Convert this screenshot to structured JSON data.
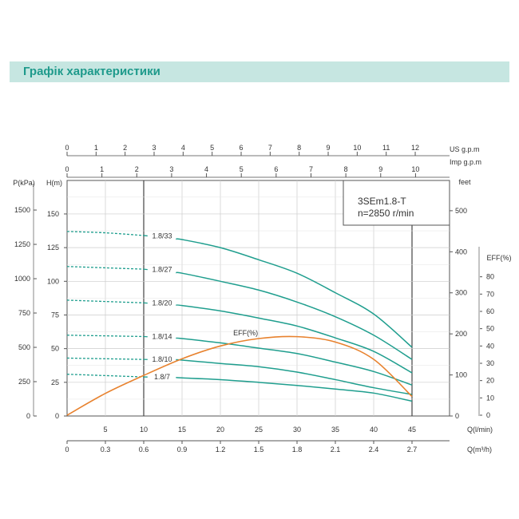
{
  "header": {
    "title": "Графік характеристики"
  },
  "chart_data": {
    "type": "line",
    "model_box": {
      "model": "3SEm1.8-T",
      "speed": "n=2850 r/min"
    },
    "x": [
      0,
      5,
      10,
      15,
      20,
      25,
      30,
      35,
      40,
      45
    ],
    "xlabel": "Q(l/min)",
    "xlim": [
      0,
      45
    ],
    "xlabel_m3h": "Q(m³/h)",
    "xticks_m3h": [
      "0",
      "0.3",
      "0.6",
      "0.9",
      "1.2",
      "1.5",
      "1.8",
      "2.1",
      "2.4",
      "2.7"
    ],
    "top_axis_us": {
      "label": "US  g.p.m",
      "ticks": [
        "0",
        "1",
        "2",
        "3",
        "4",
        "5",
        "6",
        "7",
        "8",
        "9",
        "10",
        "11",
        "12"
      ]
    },
    "top_axis_imp": {
      "label": "Imp  g.p.m",
      "ticks": [
        "0",
        "1",
        "2",
        "3",
        "4",
        "5",
        "6",
        "7",
        "8",
        "9",
        "10"
      ]
    },
    "ylabel": "H(m)",
    "ylim": [
      0,
      170
    ],
    "yticks": [
      "0",
      "25",
      "50",
      "75",
      "100",
      "125",
      "150"
    ],
    "ylabel_kpa": "P(kPa)",
    "yticks_kpa": [
      "0",
      "250",
      "500",
      "750",
      "1000",
      "1250",
      "1500"
    ],
    "ylabel_feet": "feet",
    "yticks_feet": [
      "0",
      "100",
      "200",
      "300",
      "400",
      "500"
    ],
    "eff_axis": {
      "label": "EFF(%)",
      "ticks": [
        "0",
        "10",
        "20",
        "30",
        "40",
        "50",
        "60",
        "70",
        "80"
      ],
      "range": [
        0,
        80
      ]
    },
    "grid": true,
    "series": [
      {
        "name": "1.8/33",
        "values": [
          137,
          136,
          134,
          131,
          125,
          116,
          106,
          91.5,
          75.7,
          51
        ]
      },
      {
        "name": "1.8/27",
        "values": [
          111,
          110,
          109,
          106,
          100,
          93.5,
          84.6,
          73.7,
          60,
          42
        ]
      },
      {
        "name": "1.8/20",
        "values": [
          86,
          85,
          84,
          82,
          78,
          72.7,
          66.8,
          58,
          48,
          32
        ]
      },
      {
        "name": "1.8/14",
        "values": [
          60,
          59.5,
          59,
          57.5,
          54.3,
          50.4,
          46.4,
          40,
          33,
          23
        ]
      },
      {
        "name": "1.8/10",
        "values": [
          43,
          42.5,
          42,
          41.5,
          39,
          36.6,
          32.6,
          27,
          21,
          16
        ]
      },
      {
        "name": "1.8/7",
        "values": [
          31,
          30,
          29,
          28.3,
          27,
          25,
          22.7,
          20,
          17,
          11
        ]
      }
    ],
    "efficiency": {
      "name": "EFF(%)",
      "values": [
        0,
        12.6,
        23,
        32.6,
        40,
        44.3,
        45.4,
        42.3,
        32.3,
        10.8
      ]
    },
    "colors": {
      "head": "#1f9e8e",
      "eff": "#e8822e",
      "title_bg": "#c6e6e1",
      "title_text": "#1e9a8b"
    }
  }
}
